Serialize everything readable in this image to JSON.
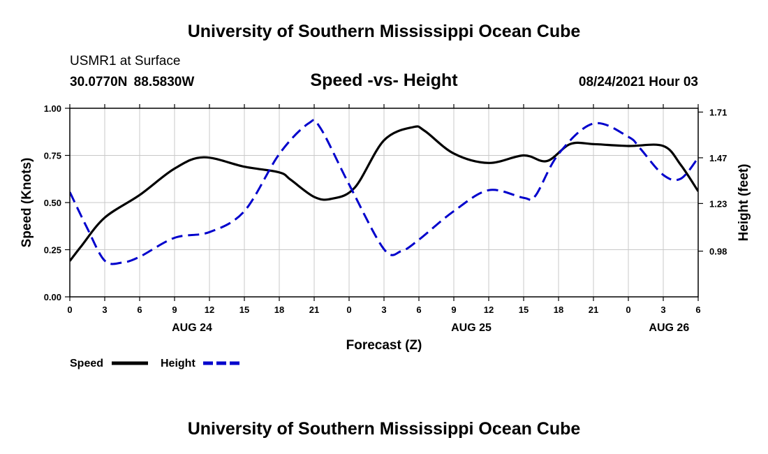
{
  "page": {
    "title_top": "University of Southern Mississippi Ocean Cube",
    "title_bottom": "University of Southern Mississippi Ocean Cube",
    "station": "USMR1 at Surface",
    "coordinates": "30.0770N  88.5830W",
    "chart_title": "Speed -vs- Height",
    "datetime": "08/24/2021 Hour 03"
  },
  "colors": {
    "speed": "#000000",
    "height": "#0000cc",
    "grid": "#c8c8c8"
  },
  "chart_data": {
    "type": "line",
    "title": "Speed -vs- Height",
    "xlabel": "Forecast (Z)",
    "ylabel": "Speed (Knots)",
    "ylabel_right": "Height (feet)",
    "x_range": [
      0,
      54
    ],
    "ylim": [
      0,
      1
    ],
    "ylim_right": [
      0.74,
      1.73
    ],
    "x_ticks": [
      0,
      3,
      6,
      9,
      12,
      15,
      18,
      21,
      24,
      27,
      30,
      33,
      36,
      39,
      42,
      45,
      48,
      51,
      54
    ],
    "x_tick_labels": [
      "0",
      "3",
      "6",
      "9",
      "12",
      "15",
      "18",
      "21",
      "0",
      "3",
      "6",
      "9",
      "12",
      "15",
      "18",
      "21",
      "0",
      "3",
      "6"
    ],
    "y_ticks": [
      0,
      0.25,
      0.5,
      0.75,
      1
    ],
    "y_tick_labels": [
      "0.00",
      "0.25",
      "0.50",
      "0.75",
      "1.00"
    ],
    "y_right_ticks": [
      0.98,
      1.23,
      1.47,
      1.71
    ],
    "y_right_tick_labels": [
      "0.98",
      "1.23",
      "1.47",
      "1.71"
    ],
    "day_labels": [
      {
        "x": 10.5,
        "label": "AUG 24"
      },
      {
        "x": 34.5,
        "label": "AUG 25"
      },
      {
        "x": 51.5,
        "label": "AUG 26"
      }
    ],
    "grid": true,
    "legend_position": "bottom-left",
    "series": [
      {
        "name": "Speed",
        "axis": "left",
        "style": "solid",
        "x": [
          0,
          1,
          3,
          6,
          9,
          11.5,
          15,
          18,
          19,
          21,
          22.5,
          24.5,
          27,
          29.5,
          30.5,
          33,
          36,
          39,
          41,
          43,
          45,
          48,
          51,
          52.5,
          54
        ],
        "y": [
          0.19,
          0.27,
          0.42,
          0.54,
          0.68,
          0.74,
          0.69,
          0.66,
          0.62,
          0.53,
          0.52,
          0.58,
          0.83,
          0.9,
          0.88,
          0.76,
          0.71,
          0.75,
          0.72,
          0.81,
          0.81,
          0.8,
          0.8,
          0.7,
          0.56
        ]
      },
      {
        "name": "Height",
        "axis": "right",
        "style": "dashed",
        "x": [
          0,
          1.5,
          3,
          4.5,
          6,
          9,
          12,
          15,
          18,
          20.5,
          21.5,
          24,
          27,
          28.5,
          30,
          33,
          36,
          39,
          40,
          42,
          45,
          48,
          49,
          51,
          52.5,
          54
        ],
        "y": [
          1.29,
          1.1,
          0.93,
          0.92,
          0.95,
          1.05,
          1.08,
          1.19,
          1.49,
          1.65,
          1.63,
          1.33,
          0.99,
          0.98,
          1.04,
          1.19,
          1.3,
          1.26,
          1.27,
          1.49,
          1.65,
          1.58,
          1.52,
          1.38,
          1.36,
          1.47
        ]
      }
    ]
  }
}
